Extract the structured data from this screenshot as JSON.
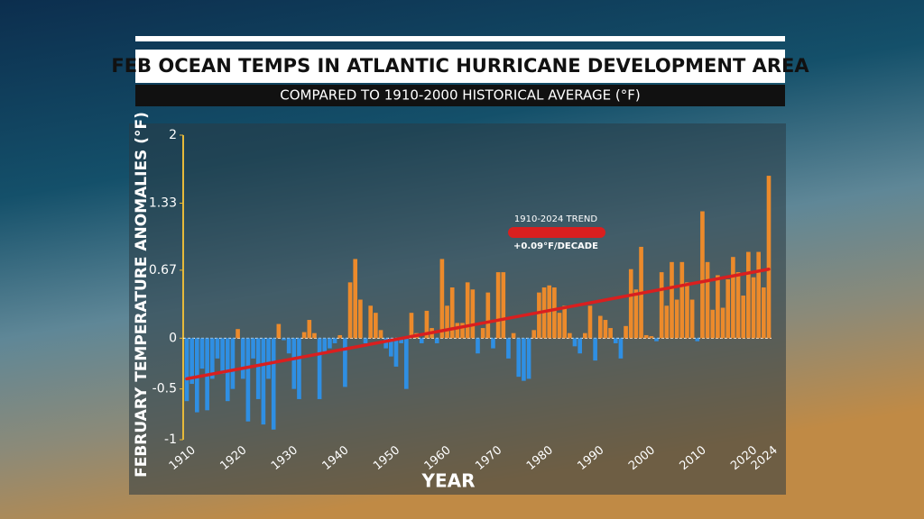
{
  "chart_data": {
    "type": "bar",
    "title": "FEB OCEAN TEMPS IN ATLANTIC HURRICANE DEVELOPMENT AREA",
    "subtitle": "COMPARED TO 1910-2000 HISTORICAL AVERAGE (°F)",
    "x_label": "YEAR",
    "y_label": "FEBRUARY TEMPERATURE ANOMALIES (°F)",
    "x": [
      1910,
      1911,
      1912,
      1913,
      1914,
      1915,
      1916,
      1917,
      1918,
      1919,
      1920,
      1921,
      1922,
      1923,
      1924,
      1925,
      1926,
      1927,
      1928,
      1929,
      1930,
      1931,
      1932,
      1933,
      1934,
      1935,
      1936,
      1937,
      1938,
      1939,
      1940,
      1941,
      1942,
      1943,
      1944,
      1945,
      1946,
      1947,
      1948,
      1949,
      1950,
      1951,
      1952,
      1953,
      1954,
      1955,
      1956,
      1957,
      1958,
      1959,
      1960,
      1961,
      1962,
      1963,
      1964,
      1965,
      1966,
      1967,
      1968,
      1969,
      1970,
      1971,
      1972,
      1973,
      1974,
      1975,
      1976,
      1977,
      1978,
      1979,
      1980,
      1981,
      1982,
      1983,
      1984,
      1985,
      1986,
      1987,
      1988,
      1989,
      1990,
      1991,
      1992,
      1993,
      1994,
      1995,
      1996,
      1997,
      1998,
      1999,
      2000,
      2001,
      2002,
      2003,
      2004,
      2005,
      2006,
      2007,
      2008,
      2009,
      2010,
      2011,
      2012,
      2013,
      2014,
      2015,
      2016,
      2017,
      2018,
      2019,
      2020,
      2021,
      2022,
      2023,
      2024
    ],
    "values": [
      -0.62,
      -0.45,
      -0.73,
      -0.3,
      -0.71,
      -0.4,
      -0.2,
      -0.35,
      -0.62,
      -0.5,
      0.09,
      -0.4,
      -0.82,
      -0.2,
      -0.6,
      -0.85,
      -0.4,
      -0.9,
      0.14,
      -0.02,
      -0.15,
      -0.5,
      -0.6,
      0.06,
      0.18,
      0.05,
      -0.6,
      -0.15,
      -0.1,
      -0.05,
      0.03,
      -0.48,
      0.55,
      0.78,
      0.38,
      -0.05,
      0.32,
      0.25,
      0.08,
      -0.1,
      -0.18,
      -0.28,
      -0.05,
      -0.5,
      0.25,
      0.05,
      -0.05,
      0.27,
      0.1,
      -0.05,
      0.78,
      0.32,
      0.5,
      0.15,
      0.15,
      0.55,
      0.48,
      -0.15,
      0.1,
      0.45,
      -0.1,
      0.65,
      0.65,
      -0.2,
      0.05,
      -0.38,
      -0.42,
      -0.4,
      0.08,
      0.45,
      0.5,
      0.52,
      0.5,
      0.25,
      0.32,
      0.05,
      -0.08,
      -0.15,
      0.05,
      0.32,
      -0.22,
      0.22,
      0.18,
      0.1,
      -0.05,
      -0.2,
      0.12,
      0.68,
      0.48,
      0.9,
      0.03,
      0.02,
      -0.03,
      0.65,
      0.32,
      0.75,
      0.38,
      0.75,
      0.55,
      0.38,
      -0.03,
      1.25,
      0.75,
      0.28,
      0.62,
      0.3,
      0.58,
      0.8,
      0.65,
      0.42,
      0.85,
      0.6,
      0.85,
      0.5,
      1.6
    ],
    "positive_color": "#ec8a2b",
    "negative_color": "#2f8fe3",
    "xlim": [
      1910,
      2024
    ],
    "xticks": [
      1910,
      1920,
      1930,
      1940,
      1950,
      1960,
      1970,
      1980,
      1990,
      2000,
      2010,
      2020,
      2024
    ],
    "ylim": [
      -1,
      2
    ],
    "yticks": [
      2,
      1.33,
      0.67,
      0,
      -0.5,
      -1
    ],
    "trend": {
      "label": "1910-2024 TREND",
      "rate_label": "+0.09°F/DECADE",
      "start": -0.4,
      "end": 0.68,
      "color": "#d91f1f"
    }
  }
}
